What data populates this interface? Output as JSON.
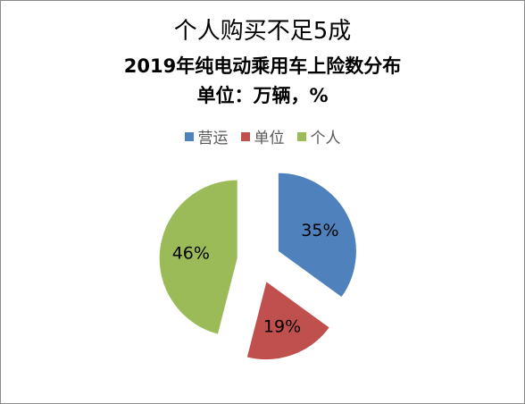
{
  "chart_data": {
    "type": "pie",
    "title": "个人购买不足5成",
    "subtitle": "2019年纯电动乘用车上险数分布",
    "unit_line": "单位：万辆，%",
    "legend_position": "top",
    "exploded": true,
    "categories": [
      "营运",
      "单位",
      "个人"
    ],
    "values": [
      35,
      19,
      46
    ],
    "data_labels": [
      "35%",
      "19%",
      "46%"
    ],
    "colors": [
      "#4f81bd",
      "#c0504d",
      "#9bbb59"
    ]
  }
}
